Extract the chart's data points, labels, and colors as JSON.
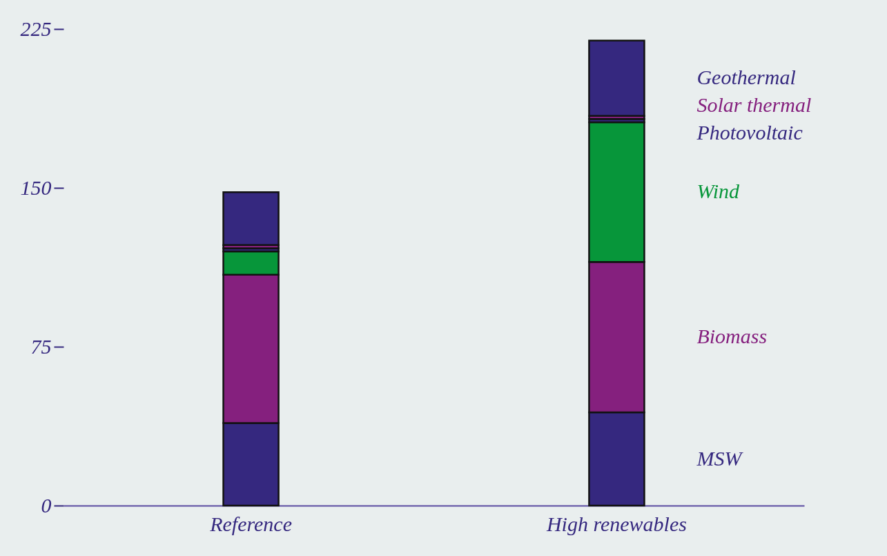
{
  "chart_data": {
    "type": "bar",
    "stacked": true,
    "categories": [
      "Reference",
      "High renewables"
    ],
    "ylim": [
      0,
      225
    ],
    "yticks": [
      0,
      75,
      150,
      225
    ],
    "series": [
      {
        "name": "MSW",
        "color": "#35287f",
        "values": [
          39,
          44
        ]
      },
      {
        "name": "Biomass",
        "color": "#85207e",
        "values": [
          70,
          71
        ]
      },
      {
        "name": "Wind",
        "color": "#07963a",
        "values": [
          11,
          66
        ]
      },
      {
        "name": "Photovoltaic",
        "color": "#35287f",
        "values": [
          1.5,
          1.5
        ]
      },
      {
        "name": "Solar thermal",
        "color": "#85207e",
        "values": [
          1.5,
          1.5
        ]
      },
      {
        "name": "Geothermal",
        "color": "#35287f",
        "values": [
          25,
          35.5
        ]
      }
    ]
  }
}
